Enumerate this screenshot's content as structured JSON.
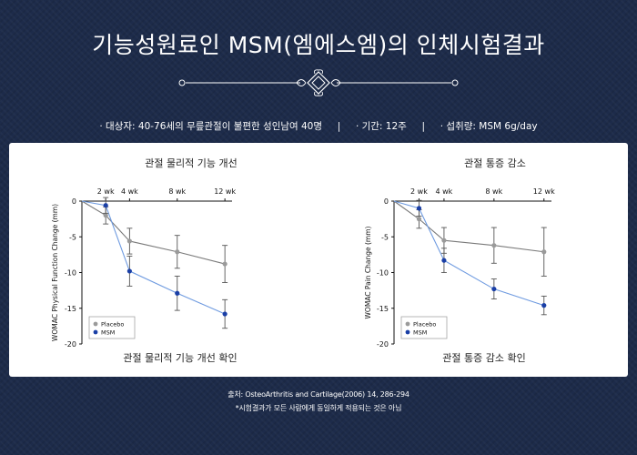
{
  "title": "기능성원료인 MSM(엠에스엠)의 인체시험결과",
  "subject_line": "· 대상자: 40-76세의 무릎관절이 불편한 성인남여 40명     |     · 기간: 12주     |     · 섭취량: MSM 6g/day",
  "source": "출처: OsteoArthritis and Cartilage(2006) 14, 286-294",
  "note": "*시험결과가 모든 사람에게 동일하게 적용되는 것은 아님",
  "colors": {
    "placebo": "#9a9a9a",
    "msm": "#1a3fa6",
    "msm_line": "#6f9be0",
    "placebo_line": "#7a7a7a"
  },
  "chart_data": [
    {
      "type": "line",
      "title": "관절 물리적 기능 개선",
      "caption": "관절 물리적 기능 개선 확인",
      "ylabel": "WOMAC Physical Function Change (mm)",
      "x_ticks": [
        "2 wk",
        "4 wk",
        "8 wk",
        "12 wk"
      ],
      "x": [
        0,
        2,
        4,
        8,
        12
      ],
      "ylim": [
        -20,
        0
      ],
      "y_ticks": [
        "0",
        "-5",
        "-10",
        "-15",
        "-20"
      ],
      "legend_position": "bottom-left",
      "series": [
        {
          "name": "Placebo",
          "color_key": "placebo",
          "values": [
            0,
            -2.0,
            -5.6,
            -7.1,
            -8.8
          ],
          "errors": [
            0,
            1.2,
            1.8,
            2.3,
            2.6
          ]
        },
        {
          "name": "MSM",
          "color_key": "msm",
          "values": [
            0,
            -0.6,
            -9.8,
            -12.9,
            -15.8
          ],
          "errors": [
            0,
            1.1,
            2.1,
            2.4,
            2.0
          ]
        }
      ]
    },
    {
      "type": "line",
      "title": "관절 통증 감소",
      "caption": "관절 통증 감소 확인",
      "ylabel": "WOMAC Pain Change (mm)",
      "x_ticks": [
        "2 wk",
        "4 wk",
        "8 wk",
        "12 wk"
      ],
      "x": [
        0,
        2,
        4,
        8,
        12
      ],
      "ylim": [
        -20,
        0
      ],
      "y_ticks": [
        "0",
        "-5",
        "-10",
        "-15",
        "-20"
      ],
      "legend_position": "bottom-left",
      "series": [
        {
          "name": "Placebo",
          "color_key": "placebo",
          "values": [
            0,
            -2.5,
            -5.5,
            -6.2,
            -7.1
          ],
          "errors": [
            0,
            1.3,
            1.8,
            2.5,
            3.4
          ]
        },
        {
          "name": "MSM",
          "color_key": "msm",
          "values": [
            0,
            -1.0,
            -8.3,
            -12.3,
            -14.6
          ],
          "errors": [
            0,
            1.1,
            1.7,
            1.4,
            1.3
          ]
        }
      ]
    }
  ]
}
